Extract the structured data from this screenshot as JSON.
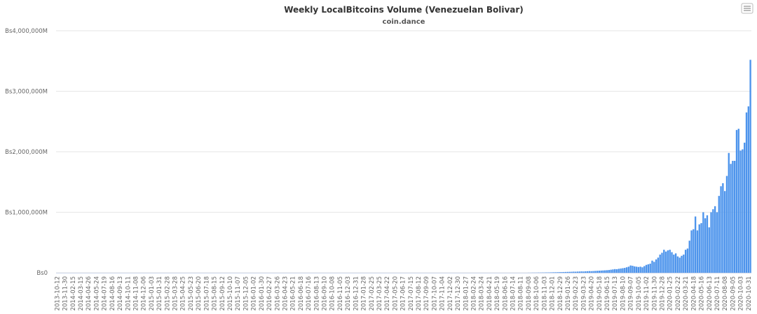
{
  "chart_data": {
    "type": "bar",
    "title": "Weekly LocalBitcoins Volume (Venezuelan Bolivar)",
    "subtitle": "coin.dance",
    "color": "#4d94ec",
    "grid": true,
    "ylim": [
      0,
      4000000
    ],
    "yticks": [
      {
        "value": 0,
        "label": "Bs0"
      },
      {
        "value": 1000000,
        "label": "Bs1,000,000M"
      },
      {
        "value": 2000000,
        "label": "Bs2,000,000M"
      },
      {
        "value": 3000000,
        "label": "Bs3,000,000M"
      },
      {
        "value": 4000000,
        "label": "Bs4,000,000M"
      }
    ],
    "categories": [
      "2013-10-12",
      null,
      null,
      null,
      "2013-11-30",
      null,
      null,
      null,
      "2014-02-15",
      null,
      null,
      null,
      "2014-03-15",
      null,
      null,
      null,
      "2014-04-26",
      null,
      null,
      null,
      "2014-05-24",
      null,
      null,
      null,
      "2014-07-19",
      null,
      null,
      null,
      "2014-08-16",
      null,
      null,
      null,
      "2014-09-13",
      null,
      null,
      null,
      "2014-10-11",
      null,
      null,
      null,
      "2014-11-08",
      null,
      null,
      null,
      "2014-12-06",
      null,
      null,
      null,
      "2015-01-03",
      null,
      null,
      null,
      "2015-01-31",
      null,
      null,
      null,
      "2015-02-28",
      null,
      null,
      null,
      "2015-03-28",
      null,
      null,
      null,
      "2015-04-25",
      null,
      null,
      null,
      "2015-05-23",
      null,
      null,
      null,
      "2015-06-20",
      null,
      null,
      null,
      "2015-07-18",
      null,
      null,
      null,
      "2015-08-15",
      null,
      null,
      null,
      "2015-09-12",
      null,
      null,
      null,
      "2015-10-10",
      null,
      null,
      null,
      "2015-11-07",
      null,
      null,
      null,
      "2015-12-05",
      null,
      null,
      null,
      "2016-01-02",
      null,
      null,
      null,
      "2016-01-30",
      null,
      null,
      null,
      "2016-02-27",
      null,
      null,
      null,
      "2016-03-26",
      null,
      null,
      null,
      "2016-04-23",
      null,
      null,
      null,
      "2016-05-21",
      null,
      null,
      null,
      "2016-06-18",
      null,
      null,
      null,
      "2016-07-16",
      null,
      null,
      null,
      "2016-08-13",
      null,
      null,
      null,
      "2016-09-10",
      null,
      null,
      null,
      "2016-10-08",
      null,
      null,
      null,
      "2016-11-05",
      null,
      null,
      null,
      "2016-12-03",
      null,
      null,
      null,
      "2016-12-31",
      null,
      null,
      null,
      "2017-01-28",
      null,
      null,
      null,
      "2017-02-25",
      null,
      null,
      null,
      "2017-03-25",
      null,
      null,
      null,
      "2017-04-22",
      null,
      null,
      null,
      "2017-05-20",
      null,
      null,
      null,
      "2017-06-17",
      null,
      null,
      null,
      "2017-07-15",
      null,
      null,
      null,
      "2017-08-12",
      null,
      null,
      null,
      "2017-09-09",
      null,
      null,
      null,
      "2017-10-07",
      null,
      null,
      null,
      "2017-11-04",
      null,
      null,
      null,
      "2017-12-02",
      null,
      null,
      null,
      "2017-12-30",
      null,
      null,
      null,
      "2018-01-27",
      null,
      null,
      null,
      "2018-02-24",
      null,
      null,
      null,
      "2018-03-24",
      null,
      null,
      null,
      "2018-04-21",
      null,
      null,
      null,
      "2018-05-19",
      null,
      null,
      null,
      "2018-06-16",
      null,
      null,
      null,
      "2018-07-14",
      null,
      null,
      null,
      "2018-08-11",
      null,
      null,
      null,
      "2018-09-08",
      null,
      null,
      null,
      "2018-10-06",
      null,
      null,
      null,
      "2018-11-03",
      null,
      null,
      null,
      "2018-12-01",
      null,
      null,
      null,
      "2018-12-29",
      null,
      null,
      null,
      "2019-01-26",
      null,
      null,
      null,
      "2019-02-23",
      null,
      null,
      null,
      "2019-03-23",
      null,
      null,
      null,
      "2019-04-20",
      null,
      null,
      null,
      "2019-05-18",
      null,
      null,
      null,
      "2019-06-15",
      null,
      null,
      null,
      "2019-07-13",
      null,
      null,
      null,
      "2019-08-10",
      null,
      null,
      null,
      "2019-09-07",
      null,
      null,
      null,
      "2019-10-05",
      null,
      null,
      null,
      "2019-11-02",
      null,
      null,
      null,
      "2019-11-30",
      null,
      null,
      null,
      "2019-12-28",
      null,
      null,
      null,
      "2020-01-25",
      null,
      null,
      null,
      "2020-02-22",
      null,
      null,
      null,
      "2020-03-21",
      null,
      null,
      null,
      "2020-04-18",
      null,
      null,
      null,
      "2020-05-16",
      null,
      null,
      null,
      "2020-06-13",
      null,
      null,
      null,
      "2020-07-11",
      null,
      null,
      null,
      "2020-08-08",
      null,
      null,
      null,
      "2020-09-05",
      null,
      null,
      null,
      "2020-10-03",
      null,
      null,
      null,
      "2020-10-31",
      null
    ],
    "values": [
      0,
      0,
      0,
      0,
      0,
      0,
      0,
      0,
      0,
      0,
      0,
      0,
      0,
      0,
      0,
      0,
      0,
      0,
      0,
      0,
      0,
      0,
      0,
      0,
      0,
      0,
      0,
      0,
      0,
      0,
      0,
      0,
      0,
      0,
      0,
      0,
      0,
      0,
      0,
      0,
      0,
      0,
      0,
      0,
      0,
      0,
      0,
      0,
      0,
      0,
      0,
      0,
      0,
      0,
      0,
      0,
      0,
      0,
      0,
      0,
      0,
      0,
      0,
      0,
      0,
      0,
      0,
      0,
      0,
      0,
      0,
      0,
      0,
      0,
      0,
      0,
      0,
      0,
      0,
      0,
      0,
      0,
      0,
      0,
      0,
      0,
      0,
      0,
      0,
      0,
      0,
      0,
      0,
      0,
      0,
      0,
      0,
      0,
      0,
      0,
      0,
      0,
      0,
      0,
      0,
      0,
      0,
      0,
      0,
      0,
      0,
      0,
      0,
      0,
      0,
      0,
      0,
      0,
      0,
      0,
      0,
      0,
      0,
      0,
      0,
      0,
      0,
      0,
      0,
      0,
      0,
      0,
      0,
      0,
      0,
      0,
      0,
      0,
      0,
      0,
      0,
      0,
      0,
      0,
      0,
      0,
      0,
      0,
      0,
      0,
      0,
      0,
      0,
      0,
      0,
      0,
      0,
      0,
      0,
      0,
      0,
      0,
      0,
      0,
      0,
      0,
      0,
      0,
      0,
      0,
      0,
      0,
      0,
      0,
      0,
      0,
      0,
      0,
      0,
      0,
      0,
      0,
      0,
      0,
      0,
      0,
      0,
      0,
      0,
      0,
      0,
      0,
      0,
      0,
      0,
      0,
      0,
      0,
      0,
      0,
      0,
      0,
      0,
      0,
      0,
      0,
      0,
      0,
      0,
      0,
      0,
      0,
      0,
      0,
      0,
      0,
      0,
      0,
      0,
      0,
      0,
      0,
      0,
      0,
      0,
      0,
      0,
      0,
      0,
      0,
      0,
      0,
      0,
      0,
      0,
      0,
      0,
      0,
      0,
      0,
      1000,
      1000,
      2000,
      2000,
      2000,
      3000,
      3000,
      4000,
      4000,
      5000,
      5000,
      6000,
      7000,
      8000,
      8000,
      9000,
      10000,
      11000,
      12000,
      13000,
      14000,
      15000,
      16000,
      18000,
      17000,
      19000,
      20000,
      22000,
      21000,
      23000,
      25000,
      27000,
      26000,
      28000,
      30000,
      32000,
      34000,
      36000,
      38000,
      40000,
      42000,
      45000,
      50000,
      55000,
      60000,
      58000,
      65000,
      70000,
      75000,
      80000,
      90000,
      100000,
      120000,
      115000,
      105000,
      100000,
      95000,
      100000,
      90000,
      110000,
      130000,
      140000,
      150000,
      200000,
      180000,
      220000,
      250000,
      300000,
      330000,
      380000,
      350000,
      370000,
      380000,
      340000,
      300000,
      320000,
      270000,
      250000,
      280000,
      300000,
      380000,
      400000,
      530000,
      700000,
      720000,
      930000,
      700000,
      800000,
      820000,
      1000000,
      900000,
      950000,
      750000,
      1000000,
      1050000,
      1100000,
      1000000,
      1270000,
      1430000,
      1480000,
      1350000,
      1600000,
      1980000,
      1800000,
      1850000,
      1850000,
      2360000,
      2380000,
      2020000,
      2040000,
      2150000,
      2650000,
      2750000,
      3520000
    ]
  }
}
